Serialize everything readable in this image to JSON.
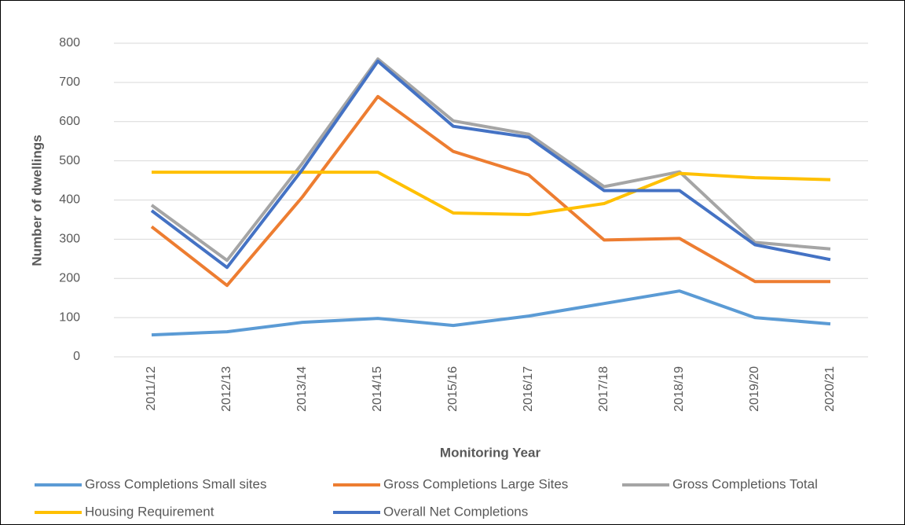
{
  "chart_data": {
    "type": "line",
    "xlabel": "Monitoring Year",
    "ylabel": "Number of dwellings",
    "categories": [
      "2011/12",
      "2012/13",
      "2013/14",
      "2014/15",
      "2015/16",
      "2016/17",
      "2017/18",
      "2018/19",
      "2019/20",
      "2020/21"
    ],
    "series": [
      {
        "name": "Gross Completions Small sites",
        "color": "#5b9bd5",
        "values": [
          56,
          64,
          88,
          98,
          80,
          104,
          136,
          168,
          100,
          84
        ]
      },
      {
        "name": "Gross Completions Large Sites",
        "color": "#ed7d31",
        "values": [
          332,
          182,
          408,
          664,
          524,
          464,
          298,
          302,
          192,
          192
        ]
      },
      {
        "name": "Gross Completions Total",
        "color": "#a5a5a5",
        "values": [
          387,
          246,
          494,
          760,
          602,
          568,
          434,
          472,
          292,
          275
        ]
      },
      {
        "name": "Housing Requirement",
        "color": "#ffc000",
        "values": [
          471,
          471,
          471,
          471,
          367,
          363,
          391,
          468,
          457,
          452
        ]
      },
      {
        "name": "Overall Net Completions",
        "color": "#4472c4",
        "values": [
          373,
          228,
          478,
          754,
          588,
          560,
          424,
          424,
          286,
          248
        ]
      }
    ],
    "ylim": [
      0,
      800
    ],
    "yticks": [
      0,
      100,
      200,
      300,
      400,
      500,
      600,
      700,
      800
    ],
    "grid": true,
    "legend": "bottom"
  }
}
